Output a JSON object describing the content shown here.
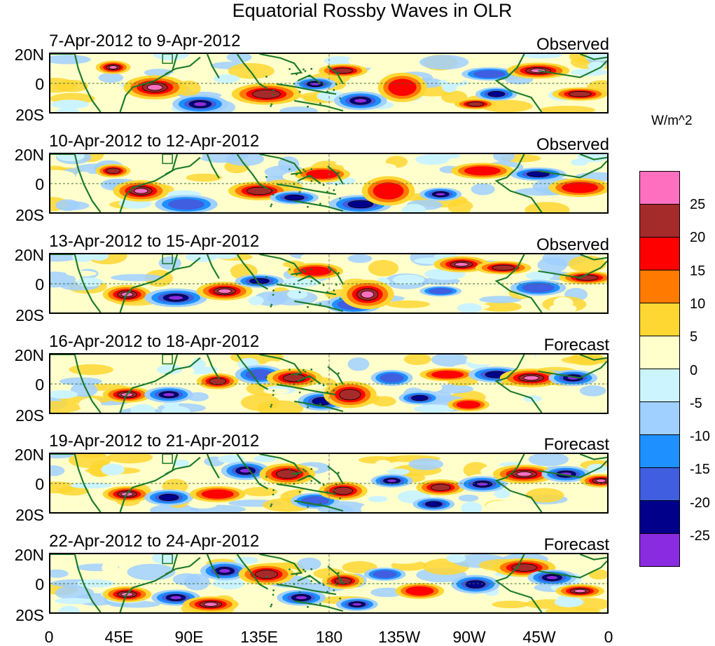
{
  "title": "Equatorial Rossby Waves in OLR",
  "lat_labels": [
    "20N",
    "0",
    "20S"
  ],
  "lon_labels": [
    "0",
    "45E",
    "90E",
    "135E",
    "180",
    "135W",
    "90W",
    "45W",
    "0"
  ],
  "panels": [
    {
      "date": "7-Apr-2012 to 9-Apr-2012",
      "status": "Observed"
    },
    {
      "date": "10-Apr-2012 to 12-Apr-2012",
      "status": "Observed"
    },
    {
      "date": "13-Apr-2012 to 15-Apr-2012",
      "status": "Observed"
    },
    {
      "date": "16-Apr-2012 to 18-Apr-2012",
      "status": "Forecast"
    },
    {
      "date": "19-Apr-2012 to 21-Apr-2012",
      "status": "Forecast"
    },
    {
      "date": "22-Apr-2012 to 24-Apr-2012",
      "status": "Forecast"
    }
  ],
  "colorbar": {
    "units": "W/m^2",
    "colors": [
      "#ff6fc0",
      "#a52a2a",
      "#ff0000",
      "#ff7a00",
      "#ffd733",
      "#ffffcc",
      "#ccf4ff",
      "#a0d0ff",
      "#1e90ff",
      "#3f5ee0",
      "#00008b",
      "#8a2be2"
    ],
    "labels": [
      "25",
      "20",
      "15",
      "10",
      "5",
      "0",
      "-5",
      "-10",
      "-15",
      "-20",
      "-25"
    ]
  }
}
